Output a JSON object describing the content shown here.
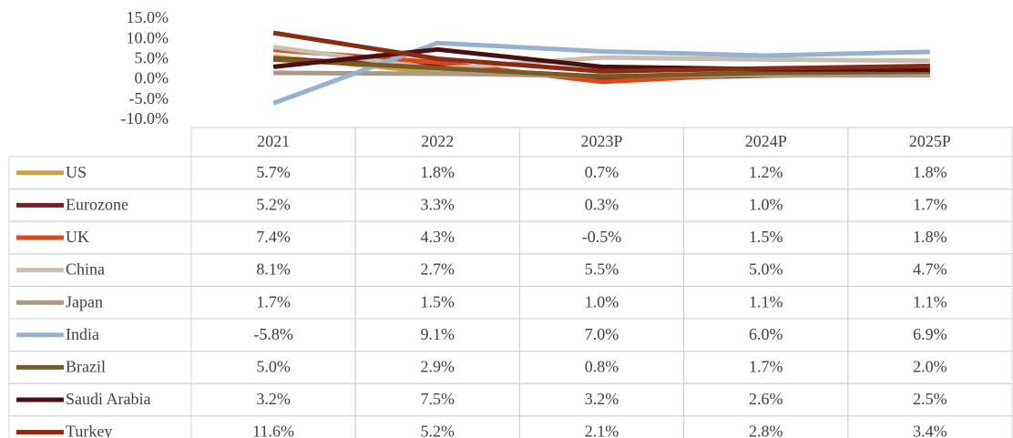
{
  "chart_data": {
    "type": "line",
    "categories": [
      "2021",
      "2022",
      "2023P",
      "2024P",
      "2025P"
    ],
    "ylim": [
      -10,
      15
    ],
    "yticks": [
      {
        "value": -10,
        "label": "-10.0%"
      },
      {
        "value": -5,
        "label": "-5.0%"
      },
      {
        "value": 0,
        "label": "0.0%"
      },
      {
        "value": 5,
        "label": "5.0%"
      },
      {
        "value": 10,
        "label": "10.0%"
      },
      {
        "value": 15,
        "label": "15.0%"
      }
    ],
    "series": [
      {
        "name": "US",
        "color": "#c9a13a",
        "values": [
          5.7,
          1.8,
          0.7,
          1.2,
          1.8
        ],
        "value_labels": [
          "5.7%",
          "1.8%",
          "0.7%",
          "1.2%",
          "1.8%"
        ]
      },
      {
        "name": "Eurozone",
        "color": "#7b1e2a",
        "values": [
          5.2,
          3.3,
          0.3,
          1.0,
          1.7
        ],
        "value_labels": [
          "5.2%",
          "3.3%",
          "0.3%",
          "1.0%",
          "1.7%"
        ]
      },
      {
        "name": "UK",
        "color": "#e0461c",
        "values": [
          7.4,
          4.3,
          -0.5,
          1.5,
          1.8
        ],
        "value_labels": [
          "7.4%",
          "4.3%",
          "-0.5%",
          "1.5%",
          "1.8%"
        ]
      },
      {
        "name": "China",
        "color": "#c8bfb0",
        "values": [
          8.1,
          2.7,
          5.5,
          5.0,
          4.7
        ],
        "value_labels": [
          "8.1%",
          "2.7%",
          "5.5%",
          "5.0%",
          "4.7%"
        ]
      },
      {
        "name": "Japan",
        "color": "#a89a88",
        "values": [
          1.7,
          1.5,
          1.0,
          1.1,
          1.1
        ],
        "value_labels": [
          "1.7%",
          "1.5%",
          "1.0%",
          "1.1%",
          "1.1%"
        ]
      },
      {
        "name": "India",
        "color": "#95b3d0",
        "values": [
          -5.8,
          9.1,
          7.0,
          6.0,
          6.9
        ],
        "value_labels": [
          "-5.8%",
          "9.1%",
          "7.0%",
          "6.0%",
          "6.9%"
        ]
      },
      {
        "name": "Brazil",
        "color": "#7a5a22",
        "values": [
          5.0,
          2.9,
          0.8,
          1.7,
          2.0
        ],
        "value_labels": [
          "5.0%",
          "2.9%",
          "0.8%",
          "1.7%",
          "2.0%"
        ]
      },
      {
        "name": "Saudi Arabia",
        "color": "#4a1010",
        "values": [
          3.2,
          7.5,
          3.2,
          2.6,
          2.5
        ],
        "value_labels": [
          "3.2%",
          "7.5%",
          "3.2%",
          "2.6%",
          "2.5%"
        ]
      },
      {
        "name": "Turkey",
        "color": "#8b2a12",
        "values": [
          11.6,
          5.2,
          2.1,
          2.8,
          3.4
        ],
        "value_labels": [
          "11.6%",
          "5.2%",
          "2.1%",
          "2.8%",
          "3.4%"
        ]
      }
    ]
  }
}
